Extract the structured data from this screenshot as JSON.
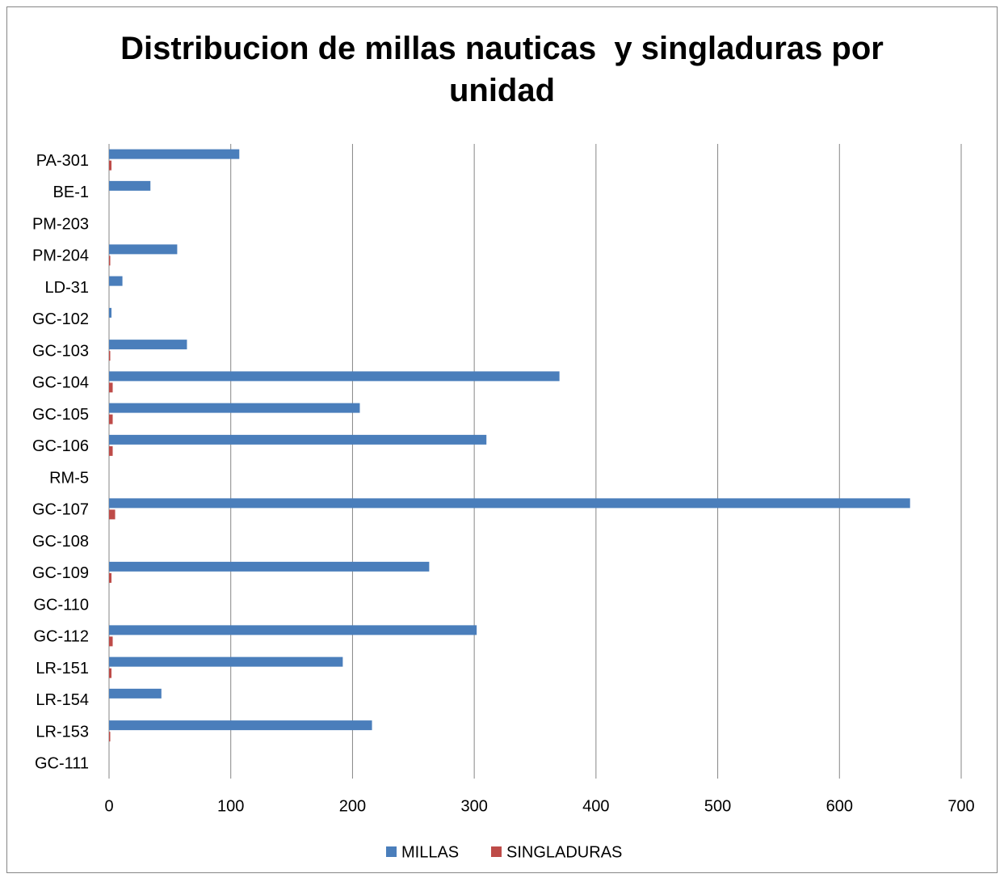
{
  "chart_data": {
    "type": "bar",
    "orientation": "horizontal",
    "title": "Distribucion de millas nauticas  y singladuras por unidad",
    "categories": [
      "PA-301",
      "BE-1",
      "PM-203",
      "PM-204",
      "LD-31",
      "GC-102",
      "GC-103",
      "GC-104",
      "GC-105",
      "GC-106",
      "RM-5",
      "GC-107",
      "GC-108",
      "GC-109",
      "GC-110",
      "GC-112",
      "LR-151",
      "LR-154",
      "LR-153",
      "GC-111"
    ],
    "series": [
      {
        "name": "MILLAS",
        "color": "#4a7ebb",
        "values": [
          107,
          34,
          0,
          56,
          11,
          2,
          64,
          370,
          206,
          310,
          0,
          658,
          0,
          263,
          0,
          302,
          192,
          43,
          216,
          0
        ]
      },
      {
        "name": "SINGLADURAS",
        "color": "#be4b48",
        "values": [
          2,
          0,
          0,
          1,
          0,
          0,
          1,
          3,
          3,
          3,
          0,
          5,
          0,
          2,
          0,
          3,
          2,
          0,
          1,
          0
        ]
      }
    ],
    "xlim": [
      0,
      700
    ],
    "xticks": [
      0,
      100,
      200,
      300,
      400,
      500,
      600,
      700
    ],
    "grid": true,
    "legend": "bottom"
  }
}
